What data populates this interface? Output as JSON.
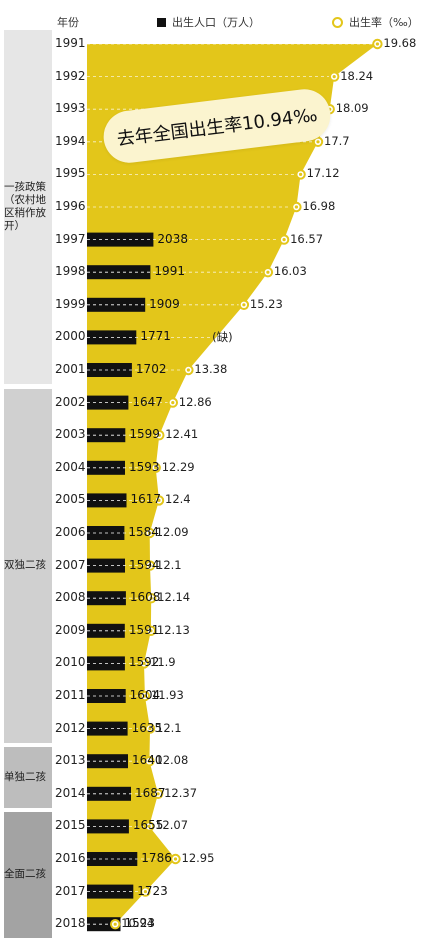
{
  "legend": {
    "year_header": "年份",
    "births_label": "出生人口（万人）",
    "rate_label": "出生率（‰）"
  },
  "callout": "去年全国出生率10.94‰",
  "policy_periods": [
    {
      "label": "一孩政策（农村地区稍作放开）",
      "from": 1991,
      "to": 2001,
      "color": "#e6e6e6"
    },
    {
      "label": "双独二孩",
      "from": 2002,
      "to": 2012,
      "color": "#d0d0d0"
    },
    {
      "label": "单独二孩",
      "from": 2013,
      "to": 2014,
      "color": "#bdbdbd"
    },
    {
      "label": "全面二孩",
      "from": 2015,
      "to": 2018,
      "color": "#a3a3a3"
    }
  ],
  "chart_data": {
    "type": "bar",
    "title": "",
    "categories": [
      "1991",
      "1992",
      "1993",
      "1994",
      "1995",
      "1996",
      "1997",
      "1998",
      "1999",
      "2000",
      "2001",
      "2002",
      "2003",
      "2004",
      "2005",
      "2006",
      "2007",
      "2008",
      "2009",
      "2010",
      "2011",
      "2012",
      "2013",
      "2014",
      "2015",
      "2016",
      "2017",
      "2018"
    ],
    "series": [
      {
        "name": "出生人口（万人）",
        "kind": "bar",
        "color": "#111111",
        "values": [
          null,
          null,
          null,
          null,
          null,
          null,
          2038,
          1991,
          1909,
          1771,
          1702,
          1647,
          1599,
          1593,
          1617,
          1584,
          1594,
          1608,
          1591,
          1592,
          1604,
          1635,
          1640,
          1687,
          1655,
          1786,
          1723,
          1523
        ]
      },
      {
        "name": "出生率（‰）",
        "kind": "area",
        "color": "#e3c61a",
        "values": [
          19.68,
          18.24,
          18.09,
          17.7,
          17.12,
          16.98,
          16.57,
          16.03,
          15.23,
          null,
          13.38,
          12.86,
          12.41,
          12.29,
          12.4,
          12.09,
          12.1,
          12.14,
          12.13,
          11.9,
          11.93,
          12.1,
          12.08,
          12.37,
          12.07,
          12.95,
          null,
          10.94
        ]
      }
    ],
    "missing_label": "(缺)",
    "orientation": "horizontal"
  }
}
